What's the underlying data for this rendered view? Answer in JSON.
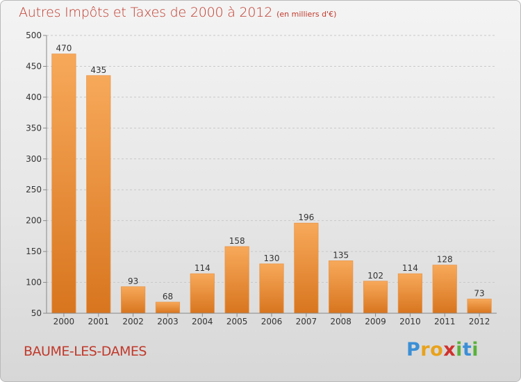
{
  "title": {
    "main": "Autres Impôts et Taxes de 2000 à 2012",
    "unit": "(en milliers d'€)"
  },
  "commune": "BAUME-LES-DAMES",
  "brand": {
    "letters": [
      {
        "ch": "P",
        "color": "#3b8fd6"
      },
      {
        "ch": "r",
        "color": "#e8a21b"
      },
      {
        "ch": "o",
        "color": "#e8a21b"
      },
      {
        "ch": "x",
        "color": "#d0312d"
      },
      {
        "ch": "i",
        "color": "#59b23b"
      },
      {
        "ch": "t",
        "color": "#3b8fd6"
      },
      {
        "ch": "i",
        "color": "#59b23b"
      }
    ]
  },
  "colors": {
    "bar_light": "#f7a95a",
    "bar_dark": "#d8751f",
    "axis": "#888888",
    "grid": "#c8c8c8",
    "text": "#333333",
    "title": "#c0392b"
  },
  "chart_data": {
    "type": "bar",
    "title": "Autres Impôts et Taxes de 2000 à 2012",
    "xlabel": "",
    "ylabel": "",
    "categories": [
      "2000",
      "2001",
      "2002",
      "2003",
      "2004",
      "2005",
      "2006",
      "2007",
      "2008",
      "2009",
      "2010",
      "2011",
      "2012"
    ],
    "values": [
      470,
      435,
      93,
      68,
      114,
      158,
      130,
      196,
      135,
      102,
      114,
      128,
      73
    ],
    "ylim": [
      50,
      500
    ],
    "yticks": [
      50,
      100,
      150,
      200,
      250,
      300,
      350,
      400,
      450,
      500
    ],
    "grid": "horizontal dashed",
    "legend": "none"
  }
}
